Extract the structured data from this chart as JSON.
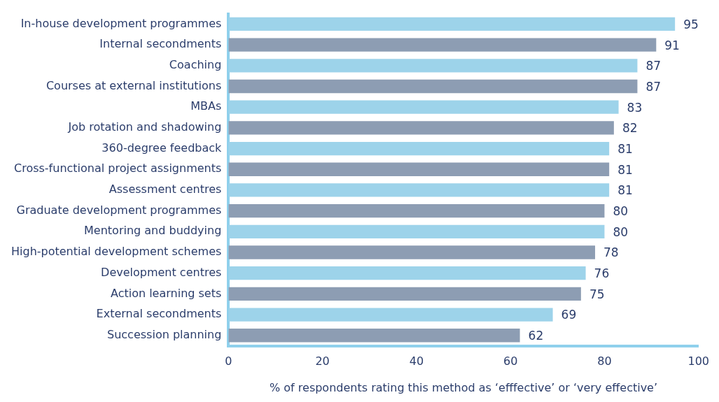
{
  "chart_data": {
    "type": "bar",
    "orientation": "horizontal",
    "xlabel": "% of respondents rating this method as ‘efffective’ or ‘very effective’",
    "categories": [
      "In-house development programmes",
      "Internal secondments",
      "Coaching",
      "Courses at external institutions",
      "MBAs",
      "Job rotation and shadowing",
      "360-degree feedback",
      "Cross-functional project assignments",
      "Assessment centres",
      "Graduate development programmes",
      "Mentoring and buddying",
      "High-potential development schemes",
      "Development centres",
      "Action learning sets",
      "External secondments",
      "Succession planning"
    ],
    "values": [
      95,
      91,
      87,
      87,
      83,
      82,
      81,
      81,
      81,
      80,
      80,
      78,
      76,
      75,
      69,
      62
    ],
    "colors": [
      "#9dd3ea",
      "#8d9db3",
      "#9dd3ea",
      "#8d9db3",
      "#9dd3ea",
      "#8d9db3",
      "#9dd3ea",
      "#8d9db3",
      "#9dd3ea",
      "#8d9db3",
      "#9dd3ea",
      "#8d9db3",
      "#9dd3ea",
      "#8d9db3",
      "#9dd3ea",
      "#8d9db3"
    ],
    "xlim": [
      0,
      100
    ],
    "xticks": [
      0,
      20,
      40,
      60,
      80,
      100
    ],
    "grid": false,
    "legend": false,
    "data_labels": true
  }
}
